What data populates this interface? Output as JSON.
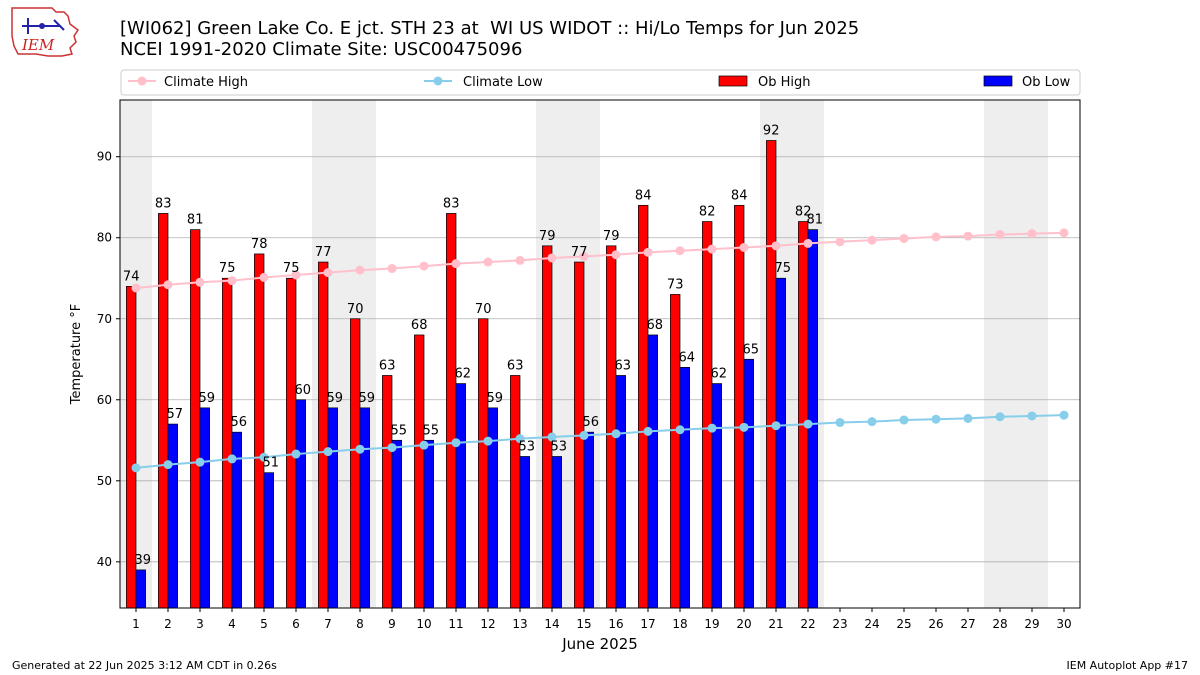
{
  "header": {
    "title_line1": "[WI062] Green Lake Co. E jct. STH 23 at  WI US WIDOT :: Hi/Lo Temps for Jun 2025",
    "title_line2": "NCEI 1991-2020 Climate Site: USC00475096",
    "logo_text": "IEM"
  },
  "footer": {
    "left": "Generated at 22 Jun 2025 3:12 AM CDT in 0.26s",
    "right": "IEM Autoplot App #17"
  },
  "colors": {
    "ob_high": "#ff0000",
    "ob_low": "#0000ff",
    "climate_high": "#ffc0cb",
    "climate_low": "#87ceeb",
    "weekend_shade": "#eeeeee",
    "grid": "#b0b0b0"
  },
  "chart_data": {
    "type": "bar",
    "xlabel": "June 2025",
    "ylabel": "Temperature °F",
    "ylim": [
      34.3,
      97
    ],
    "yticks": [
      40,
      50,
      60,
      70,
      80,
      90
    ],
    "grid": "horizontal",
    "legend_placement": "top",
    "days": [
      1,
      2,
      3,
      4,
      5,
      6,
      7,
      8,
      9,
      10,
      11,
      12,
      13,
      14,
      15,
      16,
      17,
      18,
      19,
      20,
      21,
      22,
      23,
      24,
      25,
      26,
      27,
      28,
      29,
      30
    ],
    "weekend_shading": [
      [
        1,
        1
      ],
      [
        7,
        8
      ],
      [
        14,
        15
      ],
      [
        21,
        22
      ],
      [
        28,
        29
      ]
    ],
    "series": [
      {
        "name": "Ob High",
        "kind": "bar",
        "values": [
          74,
          83,
          81,
          75,
          78,
          75,
          77,
          70,
          63,
          68,
          83,
          70,
          63,
          79,
          77,
          79,
          84,
          73,
          82,
          84,
          92,
          82
        ]
      },
      {
        "name": "Ob Low",
        "kind": "bar",
        "values": [
          39,
          57,
          59,
          56,
          51,
          60,
          59,
          59,
          55,
          55,
          62,
          59,
          53,
          53,
          56,
          63,
          68,
          64,
          62,
          65,
          75,
          81
        ]
      },
      {
        "name": "Climate High",
        "kind": "line",
        "values": [
          73.8,
          74.2,
          74.5,
          74.7,
          75.1,
          75.4,
          75.7,
          76.0,
          76.2,
          76.5,
          76.8,
          77.0,
          77.2,
          77.5,
          77.7,
          77.9,
          78.2,
          78.4,
          78.6,
          78.8,
          79.0,
          79.3,
          79.5,
          79.7,
          79.9,
          80.1,
          80.2,
          80.4,
          80.5,
          80.6
        ]
      },
      {
        "name": "Climate Low",
        "kind": "line",
        "values": [
          51.6,
          52.0,
          52.3,
          52.7,
          52.9,
          53.3,
          53.6,
          53.9,
          54.1,
          54.4,
          54.7,
          54.9,
          55.2,
          55.4,
          55.6,
          55.8,
          56.1,
          56.3,
          56.5,
          56.6,
          56.8,
          57.0,
          57.2,
          57.3,
          57.5,
          57.6,
          57.7,
          57.9,
          58.0,
          58.1
        ]
      }
    ],
    "labels": {
      "ob_high": [
        "74",
        "83",
        "81",
        "75",
        "78",
        "75",
        "77",
        "70",
        "63",
        "68",
        "83",
        "70",
        "63",
        "79",
        "77",
        "79",
        "84",
        "73",
        "82",
        "84",
        "92",
        "82"
      ],
      "ob_low": [
        "39",
        "57",
        "59",
        "56",
        "51",
        "60",
        "59",
        "59",
        "55",
        "55",
        "62",
        "59",
        "53",
        "53",
        "56",
        "63",
        "68",
        "64",
        "62",
        "65",
        "75",
        "81"
      ]
    }
  }
}
